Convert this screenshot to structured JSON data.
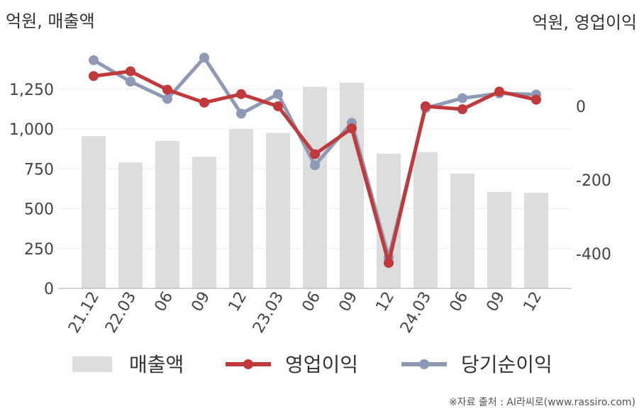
{
  "chart_data": {
    "type": "bar+line",
    "left_axis_title": "억원, 매출액",
    "right_axis_title": "억원, 영업이익",
    "categories": [
      "21.12",
      "22.03",
      "06",
      "09",
      "12",
      "23.03",
      "06",
      "09",
      "12",
      "24.03",
      "06",
      "09",
      "12"
    ],
    "left_axis": {
      "min": 0,
      "max": 1500,
      "ticks": [
        0,
        250,
        500,
        750,
        1000,
        1250
      ],
      "tick_labels": [
        "0",
        "250",
        "500",
        "750",
        "1,000",
        "1,250"
      ]
    },
    "right_axis": {
      "min": -500,
      "max": 150,
      "ticks": [
        -400,
        -200,
        0
      ],
      "tick_labels": [
        "-400",
        "-200",
        "0"
      ]
    },
    "series": [
      {
        "name": "매출액",
        "kind": "bar",
        "axis": "left",
        "color": "#dddddd",
        "values": [
          955,
          790,
          925,
          825,
          1000,
          975,
          1265,
          1290,
          845,
          855,
          720,
          605,
          600
        ]
      },
      {
        "name": "영업이익",
        "kind": "line",
        "axis": "right",
        "color": "#c0393b",
        "values": [
          82,
          95,
          45,
          10,
          33,
          0,
          -130,
          -60,
          -425,
          0,
          -8,
          40,
          18
        ]
      },
      {
        "name": "당기순이익",
        "kind": "line",
        "axis": "right",
        "color": "#8e9ab5",
        "values": [
          125,
          67,
          20,
          132,
          -20,
          33,
          -160,
          -45,
          -410,
          -5,
          22,
          35,
          32
        ]
      }
    ],
    "legend_position": "bottom",
    "grid": true
  },
  "source_note": "※자료 출처 : AI라씨로(www.rassiro.com)"
}
